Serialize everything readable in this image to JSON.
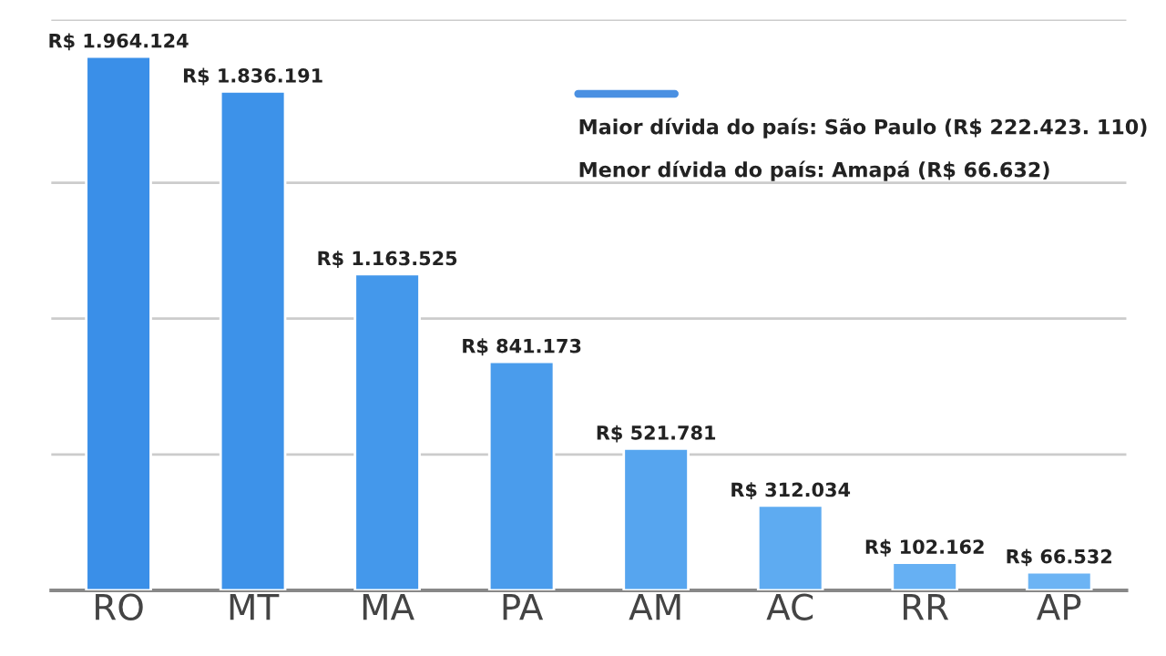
{
  "chart_data": {
    "type": "bar",
    "categories": [
      "RO",
      "MT",
      "MA",
      "PA",
      "AM",
      "AC",
      "RR",
      "AP"
    ],
    "values": [
      1964124,
      1836191,
      1163525,
      841173,
      521781,
      312034,
      102162,
      66532
    ],
    "value_labels": [
      "R$ 1.964.124",
      "R$ 1.836.191",
      "R$ 1.163.525",
      "R$ 841.173",
      "R$ 521.781",
      "R$ 312.034",
      "R$ 102.162",
      "R$ 66.532"
    ],
    "colors": [
      "#3a8fe8",
      "#3d92e9",
      "#4498eb",
      "#4a9cec",
      "#56a5ef",
      "#5eabf1",
      "#66b0f3",
      "#6cb4f4"
    ],
    "ylim": [
      0,
      2100000
    ],
    "yticks": [
      {
        "value": 0,
        "label": null
      },
      {
        "value": 500000,
        "label": null
      },
      {
        "value": 1000000,
        "label": null
      },
      {
        "value": 1500000,
        "label": null
      },
      {
        "value": 2100000,
        "label": null
      }
    ],
    "grid": "y",
    "annotations": [
      "Maior dívida do país: São Paulo (R$ 222.423. 110)",
      "Menor dívida do país: Amapá (R$ 66.632)"
    ]
  }
}
